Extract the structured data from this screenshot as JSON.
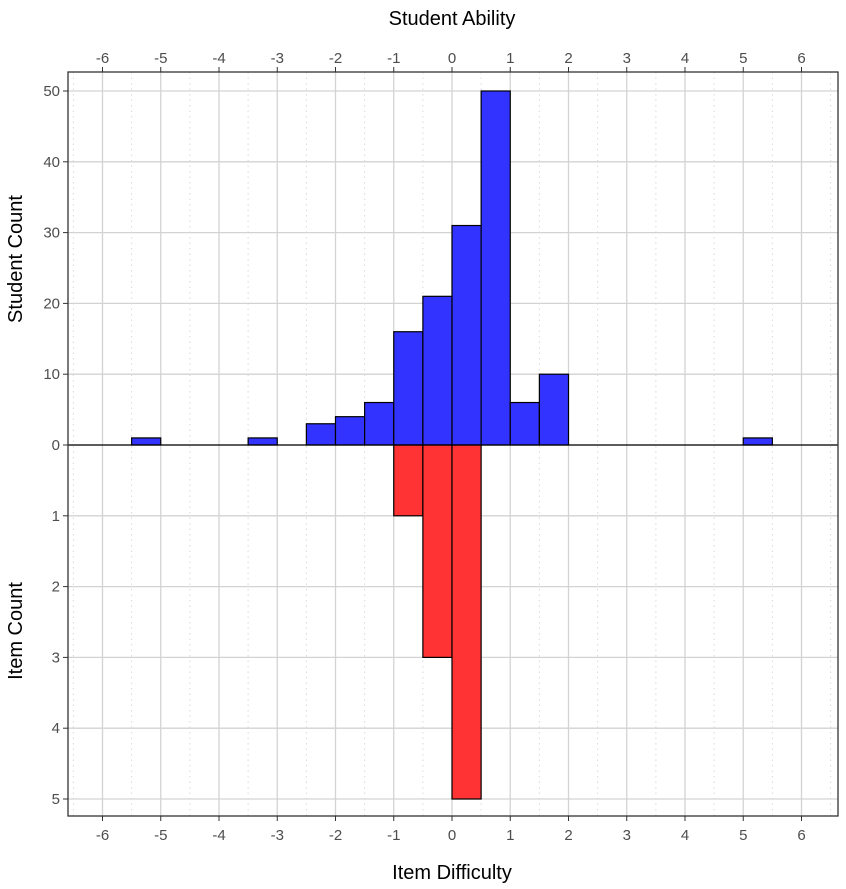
{
  "chart_data": {
    "type": "bar",
    "top_xlabel": "Student Ability",
    "bottom_xlabel": "Item Difficulty",
    "top_ylabel": "Student Count",
    "bottom_ylabel": "Item Count",
    "xlim": [
      -6.6,
      6.6
    ],
    "x_ticks": [
      -6,
      -5,
      -4,
      -3,
      -2,
      -1,
      0,
      1,
      2,
      3,
      4,
      5,
      6
    ],
    "student_y_ticks": [
      0,
      10,
      20,
      30,
      40,
      50
    ],
    "item_y_ticks": [
      1,
      2,
      3,
      4,
      5
    ],
    "bin_width": 0.5,
    "colors": {
      "students": "#3333ff",
      "items": "#ff3333"
    },
    "series": [
      {
        "name": "Students",
        "bins": [
          {
            "x0": -5.5,
            "count": 1
          },
          {
            "x0": -3.5,
            "count": 1
          },
          {
            "x0": -2.5,
            "count": 3
          },
          {
            "x0": -2,
            "count": 4
          },
          {
            "x0": -1.5,
            "count": 6
          },
          {
            "x0": -1,
            "count": 16
          },
          {
            "x0": -0.5,
            "count": 21
          },
          {
            "x0": 0,
            "count": 31
          },
          {
            "x0": 0.5,
            "count": 50
          },
          {
            "x0": 1,
            "count": 6
          },
          {
            "x0": 1.5,
            "count": 10
          },
          {
            "x0": 5,
            "count": 1
          }
        ]
      },
      {
        "name": "Items",
        "bins": [
          {
            "x0": -1,
            "count": 1
          },
          {
            "x0": -0.5,
            "count": 3
          },
          {
            "x0": 0,
            "count": 5
          }
        ]
      }
    ]
  }
}
